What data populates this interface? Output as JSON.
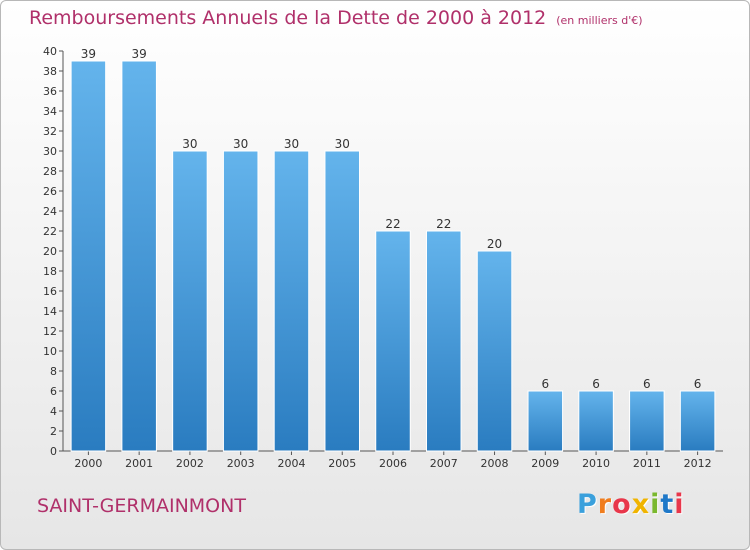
{
  "chart_data": {
    "type": "bar",
    "title": "Remboursements Annuels de la Dette de 2000 à 2012",
    "subtitle": "(en milliers d'€)",
    "xlabel": "",
    "ylabel": "",
    "categories": [
      "2000",
      "2001",
      "2002",
      "2003",
      "2004",
      "2005",
      "2006",
      "2007",
      "2008",
      "2009",
      "2010",
      "2011",
      "2012"
    ],
    "values": [
      39,
      39,
      30,
      30,
      30,
      30,
      22,
      22,
      20,
      6,
      6,
      6,
      6
    ],
    "ylim": [
      0,
      40
    ],
    "ytick_step": 2,
    "grid": false,
    "legend": "none",
    "bar_color": "#3f93d8"
  },
  "footer": {
    "commune": "SAINT-GERMAINMONT",
    "logo": {
      "letters": [
        "P",
        "r",
        "o",
        "x",
        "i",
        "t",
        "i"
      ],
      "colors": [
        "#3aa0dc",
        "#f07d1e",
        "#e8374b",
        "#f0b400",
        "#7ab82e",
        "#1e78c8",
        "#e8374b"
      ]
    }
  }
}
